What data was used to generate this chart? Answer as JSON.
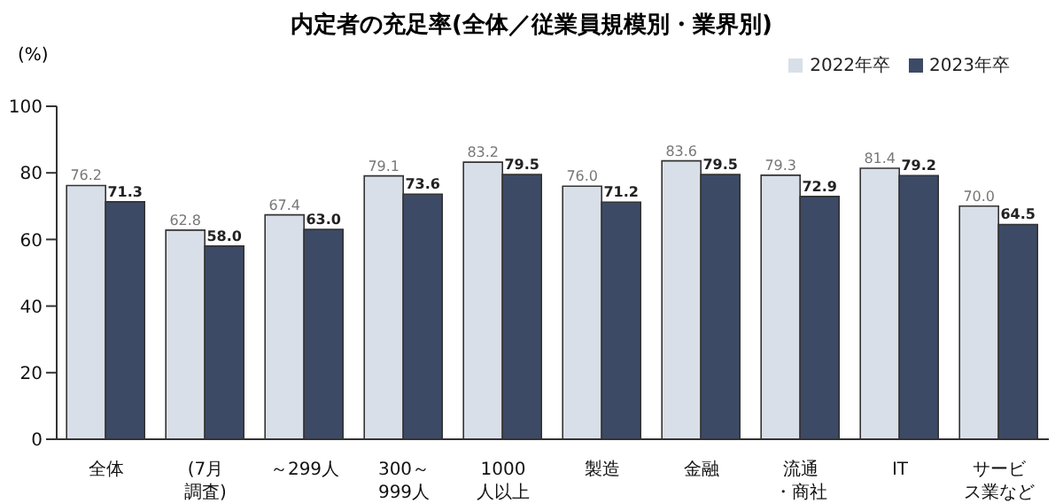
{
  "chart_data": {
    "type": "bar",
    "title": "内定者の充足率(全体／従業員規模別・業界別)",
    "ylabel": "(%)",
    "categories": [
      "全体",
      "(7月調査)",
      "～299人",
      "300～999人",
      "1000人以上",
      "製造",
      "金融",
      "流通・商社",
      "IT",
      "サービス業など"
    ],
    "series": [
      {
        "name": "2022年卒",
        "color": "#d9dfe8",
        "values": [
          76.2,
          62.8,
          67.4,
          79.1,
          83.2,
          76.0,
          83.6,
          79.3,
          81.4,
          70.0
        ],
        "value_labels": [
          "76.2",
          "62.8",
          "67.4",
          "79.1",
          "83.2",
          "76.0",
          "83.6",
          "79.3",
          "81.4",
          "70.0"
        ]
      },
      {
        "name": "2023年卒",
        "color": "#3c4a66",
        "values": [
          71.3,
          58.0,
          63.0,
          73.6,
          79.5,
          71.2,
          79.5,
          72.9,
          79.2,
          64.5
        ],
        "value_labels": [
          "71.3",
          "58.0",
          "63.0",
          "73.6",
          "79.5",
          "71.2",
          "79.5",
          "72.9",
          "79.2",
          "64.5"
        ]
      }
    ],
    "ylim": [
      0,
      100
    ],
    "yticks": [
      0,
      20,
      40,
      60,
      80,
      100
    ],
    "grid": false,
    "legend": "top right"
  }
}
